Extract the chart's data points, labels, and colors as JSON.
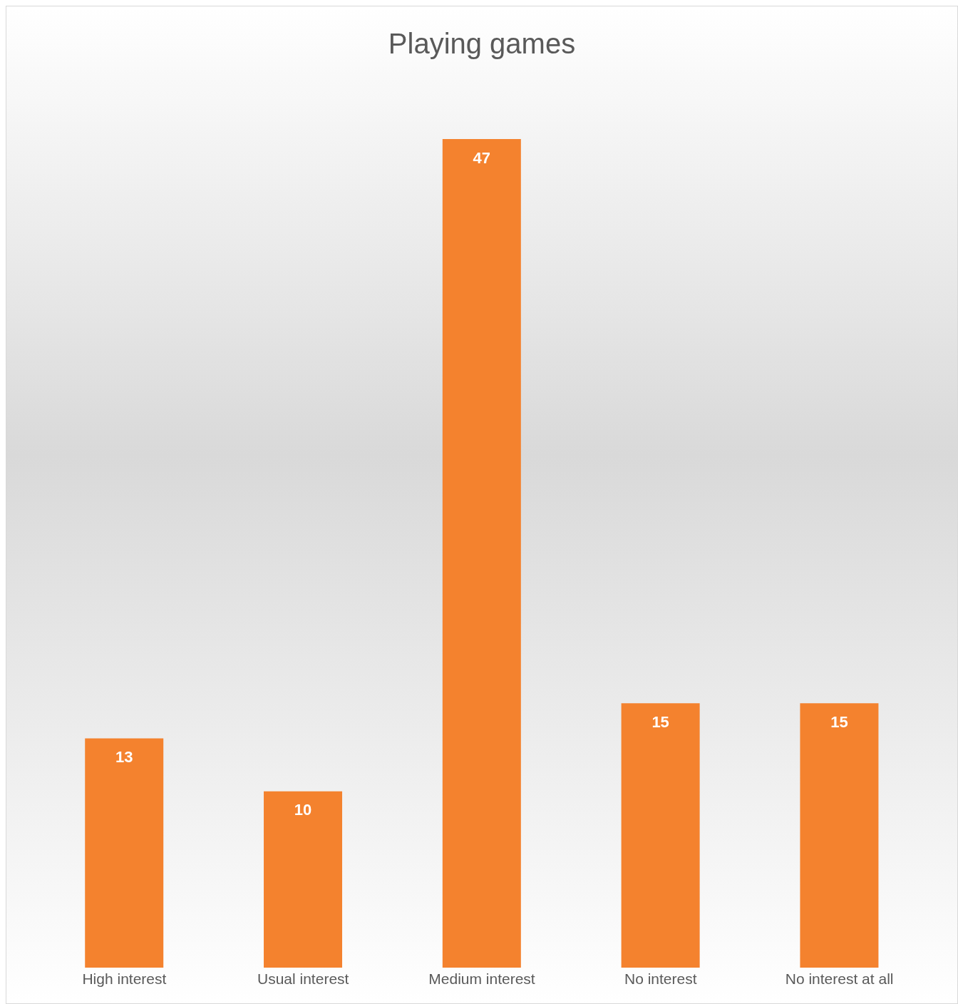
{
  "chart_data": {
    "type": "bar",
    "title": "Playing games",
    "categories": [
      "High interest",
      "Usual interest",
      "Medium interest",
      "No interest",
      "No interest at all"
    ],
    "values": [
      13,
      10,
      47,
      15,
      15
    ],
    "color": "#f4822e",
    "data_labels": true
  }
}
